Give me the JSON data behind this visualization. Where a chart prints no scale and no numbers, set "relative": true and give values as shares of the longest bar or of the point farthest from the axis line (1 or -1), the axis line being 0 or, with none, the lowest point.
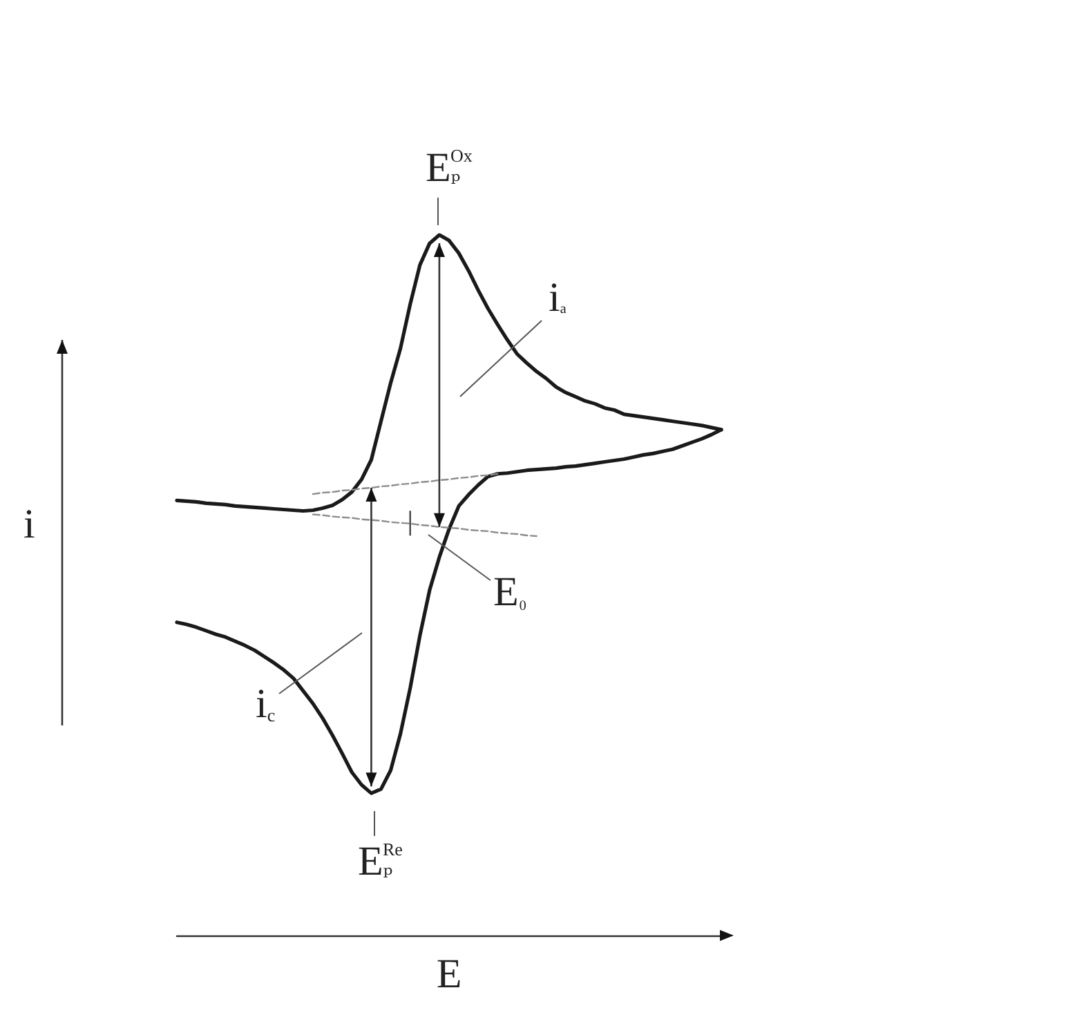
{
  "chart_data": {
    "type": "line",
    "relative": true,
    "xlabel": "E",
    "ylabel": "i",
    "marker": "none",
    "annotations": [
      "Eₚ$^{Ox}$",
      "iₐ",
      "E₀",
      "i$_{c}$",
      "Eₚ$^{Re}$"
    ],
    "categories": [
      null,
      null,
      null,
      null,
      null,
      null,
      null,
      null,
      null,
      null,
      null,
      null,
      null,
      null,
      null,
      null,
      null,
      null,
      null,
      null,
      null,
      null,
      null,
      null,
      null,
      null,
      null,
      null,
      null,
      null,
      null,
      null,
      null,
      null,
      null,
      null,
      null,
      null,
      null,
      null,
      null,
      null,
      null,
      null,
      null,
      null,
      null,
      null,
      null,
      null,
      null,
      null,
      null,
      null,
      null,
      null,
      null
    ],
    "series": [
      {
        "color": "#1a1a1a",
        "values": [
          0.621,
          0.62,
          0.619,
          0.617,
          0.616,
          0.615,
          0.613,
          0.612,
          0.611,
          0.61,
          0.609,
          0.608,
          0.607,
          0.606,
          0.607,
          0.61,
          0.614,
          0.622,
          0.633,
          0.651,
          0.679,
          0.734,
          0.789,
          0.838,
          0.901,
          0.957,
          0.988,
          1,
          0.992,
          0.974,
          0.949,
          0.921,
          0.895,
          0.872,
          0.85,
          0.83,
          0.817,
          0.805,
          0.795,
          0.783,
          0.775,
          0.769,
          0.763,
          0.759,
          0.753,
          0.75,
          0.744,
          0.742,
          0.74,
          0.738,
          0.736,
          0.734,
          0.732,
          0.73,
          0.728,
          0.725,
          0.722
        ]
      },
      {
        "color": "#1a1a1a",
        "values": [
          0.447,
          0.444,
          0.44,
          0.435,
          0.43,
          0.426,
          0.42,
          0.414,
          0.407,
          0.398,
          0.389,
          0.379,
          0.367,
          0.349,
          0.331,
          0.31,
          0.286,
          0.26,
          0.233,
          0.215,
          0.203,
          0.209,
          0.236,
          0.288,
          0.353,
          0.428,
          0.493,
          0.54,
          0.58,
          0.613,
          0.629,
          0.643,
          0.655,
          0.659,
          0.66,
          0.662,
          0.664,
          0.665,
          0.666,
          0.667,
          0.669,
          0.67,
          0.672,
          0.674,
          0.676,
          0.678,
          0.68,
          0.683,
          0.686,
          0.688,
          0.691,
          0.694,
          0.699,
          0.704,
          0.709,
          0.715,
          0.722
        ]
      },
      {
        "color": "#8c8c8c",
        "line_style": "dashed",
        "values": [
          null,
          null,
          null,
          null,
          null,
          null,
          null,
          null,
          null,
          null,
          null,
          null,
          null,
          null,
          0.63,
          0.632,
          0.633,
          0.635,
          0.636,
          0.638,
          0.639,
          0.641,
          0.642,
          0.644,
          0.645,
          0.647,
          0.648,
          0.65,
          0.651,
          0.653,
          0.654,
          0.656,
          0.657,
          0.659,
          null,
          null,
          null,
          null,
          null,
          null,
          null,
          null,
          null,
          null,
          null,
          null,
          null,
          null,
          null,
          null,
          null,
          null,
          null,
          null,
          null,
          null,
          null
        ]
      },
      {
        "color": "#8c8c8c",
        "line_style": "dashed",
        "values": [
          null,
          null,
          null,
          null,
          null,
          null,
          null,
          null,
          null,
          null,
          null,
          null,
          null,
          null,
          0.601,
          0.6,
          0.598,
          0.597,
          0.596,
          0.594,
          0.593,
          0.592,
          0.59,
          0.589,
          0.588,
          0.586,
          0.585,
          0.583,
          0.582,
          0.581,
          0.579,
          0.578,
          0.577,
          0.575,
          0.574,
          0.573,
          0.571,
          0.57,
          null,
          null,
          null,
          null,
          null,
          null,
          null,
          null,
          null,
          null,
          null,
          null,
          null,
          null,
          null,
          null,
          null,
          null,
          null
        ]
      }
    ]
  }
}
